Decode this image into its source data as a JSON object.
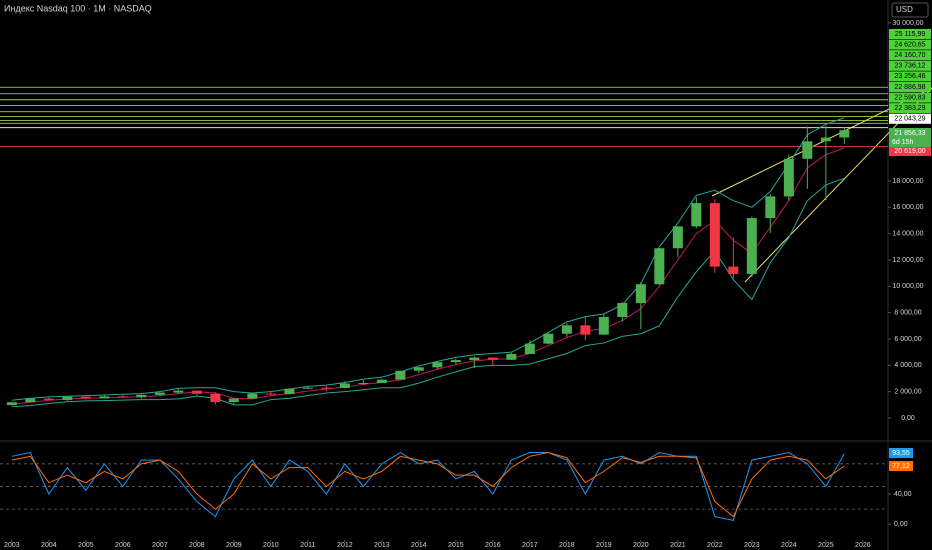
{
  "chart_data": {
    "type": "candlestick",
    "title": "Индекс Nasdaq 100 · 1M · NASDAQ",
    "currency": "USD",
    "x": [
      2003,
      2003.5,
      2004,
      2004.5,
      2005,
      2005.5,
      2006,
      2006.5,
      2007,
      2007.5,
      2008,
      2008.5,
      2009,
      2009.5,
      2010,
      2010.5,
      2011,
      2011.5,
      2012,
      2012.5,
      2013,
      2013.5,
      2014,
      2014.5,
      2015,
      2015.5,
      2016,
      2016.5,
      2017,
      2017.5,
      2018,
      2018.5,
      2019,
      2019.5,
      2020,
      2020.5,
      2021,
      2021.5,
      2022,
      2022.5,
      2023,
      2023.5,
      2024,
      2024.5,
      2025,
      2025.5
    ],
    "open": [
      980,
      1200,
      1470,
      1370,
      1620,
      1490,
      1640,
      1580,
      1760,
      1930,
      2080,
      1840,
      1210,
      1480,
      1860,
      1820,
      2220,
      2300,
      2280,
      2620,
      2660,
      2910,
      3590,
      3850,
      4240,
      4400,
      4590,
      4420,
      4860,
      5650,
      6400,
      7040,
      6330,
      7670,
      8730,
      10160,
      12890,
      14550,
      16320,
      11500,
      10940,
      15180,
      16830,
      19680,
      21010,
      21300
    ],
    "high": [
      1200,
      1470,
      1550,
      1630,
      1640,
      1700,
      1750,
      1790,
      1940,
      2240,
      2080,
      1960,
      1480,
      1880,
      2040,
      2250,
      2400,
      2440,
      2790,
      2880,
      2980,
      3600,
      3860,
      4300,
      4530,
      4700,
      4620,
      4950,
      5900,
      6450,
      7200,
      7700,
      7900,
      8800,
      10300,
      12900,
      14600,
      16760,
      16600,
      13700,
      15300,
      17000,
      20000,
      22130,
      22200,
      22050
    ],
    "low": [
      950,
      1180,
      1340,
      1300,
      1400,
      1480,
      1530,
      1450,
      1720,
      1850,
      1690,
      1020,
      1040,
      1460,
      1720,
      1780,
      2200,
      2030,
      2280,
      2500,
      2650,
      2900,
      3400,
      3700,
      4100,
      3790,
      3950,
      4400,
      4860,
      5600,
      6160,
      5900,
      6310,
      7330,
      6770,
      10100,
      12200,
      14400,
      11040,
      10440,
      10700,
      14060,
      16500,
      17400,
      16540,
      20800
    ],
    "close": [
      1200,
      1470,
      1370,
      1620,
      1490,
      1640,
      1580,
      1760,
      1930,
      2080,
      1840,
      1210,
      1480,
      1860,
      1820,
      2220,
      2300,
      2280,
      2620,
      2660,
      2910,
      3590,
      3850,
      4240,
      4400,
      4590,
      4420,
      4860,
      5650,
      6400,
      7040,
      6330,
      7670,
      8730,
      10160,
      12890,
      14550,
      16320,
      11500,
      10940,
      15180,
      16830,
      19680,
      21010,
      21300,
      21856.33
    ],
    "up_color": "#4caf50",
    "down_color": "#f23645",
    "bands": {
      "upper": [
        1350,
        1500,
        1600,
        1650,
        1700,
        1750,
        1800,
        1850,
        2000,
        2250,
        2300,
        2300,
        2000,
        1900,
        2000,
        2200,
        2400,
        2500,
        2700,
        2950,
        3100,
        3500,
        3950,
        4300,
        4600,
        4800,
        4900,
        5000,
        5700,
        6500,
        7300,
        7700,
        7900,
        8600,
        10200,
        13000,
        14800,
        16900,
        17300,
        16500,
        16000,
        17200,
        19300,
        21500,
        22300,
        22800
      ],
      "middle": [
        1050,
        1200,
        1350,
        1440,
        1500,
        1530,
        1580,
        1620,
        1700,
        1850,
        1980,
        1900,
        1500,
        1450,
        1700,
        1850,
        2050,
        2200,
        2350,
        2550,
        2700,
        2900,
        3300,
        3700,
        4050,
        4350,
        4450,
        4500,
        4900,
        5500,
        6100,
        6600,
        6800,
        7400,
        8300,
        10000,
        12000,
        14000,
        15000,
        13500,
        12500,
        14500,
        16500,
        19000,
        20000,
        20500
      ],
      "lower": [
        850,
        950,
        1100,
        1230,
        1300,
        1320,
        1360,
        1400,
        1400,
        1450,
        1660,
        1500,
        1000,
        1000,
        1400,
        1500,
        1700,
        1900,
        2000,
        2150,
        2300,
        2300,
        2650,
        3100,
        3500,
        3900,
        4000,
        4000,
        4100,
        4500,
        4900,
        5500,
        5700,
        6200,
        6400,
        7000,
        9200,
        11100,
        12700,
        10500,
        9000,
        11800,
        13700,
        16500,
        17700,
        18200
      ],
      "band_color": "#26a69a",
      "middle_color": "#c2185b"
    },
    "xlim": [
      2002.68,
      2026.68
    ],
    "xticks": [
      2003,
      2004,
      2005,
      2006,
      2007,
      2008,
      2009,
      2010,
      2011,
      2012,
      2013,
      2014,
      2015,
      2016,
      2017,
      2018,
      2019,
      2020,
      2021,
      2022,
      2023,
      2024,
      2025,
      2026
    ],
    "ylim": [
      -1670,
      31740
    ],
    "yticks": [
      {
        "value": 0,
        "label": "0,00"
      },
      {
        "value": 2000,
        "label": "2 000,00"
      },
      {
        "value": 4000,
        "label": "4 000,00"
      },
      {
        "value": 6000,
        "label": "6 000,00"
      },
      {
        "value": 8000,
        "label": "8 000,00"
      },
      {
        "value": 10000,
        "label": "10 000,00"
      },
      {
        "value": 12000,
        "label": "12 000,00"
      },
      {
        "value": 14000,
        "label": "14 000,00"
      },
      {
        "value": 16000,
        "label": "16 000,00"
      },
      {
        "value": 18000,
        "label": "18 000,00"
      },
      {
        "value": 30000,
        "label": "30 000,00"
      }
    ],
    "levels": [
      {
        "value": 25115.99,
        "label": "25 115,99",
        "color": "#b9f24a"
      },
      {
        "value": 24620.65,
        "label": "24 620,65",
        "color": "#b9f24a"
      },
      {
        "value": 24160.7,
        "label": "24 160,70",
        "color": "#b9f24a"
      },
      {
        "value": 23736.12,
        "label": "23 736,12",
        "color": "#b9f24a"
      },
      {
        "value": 23256.46,
        "label": "23 256,46",
        "color": "#b9f24a"
      },
      {
        "value": 22886.98,
        "label": "22 886,98",
        "color": "#b9f24a"
      },
      {
        "value": 22590.83,
        "label": "22 590,83",
        "color": "#b9f24a"
      },
      {
        "value": 22383.29,
        "label": "22 383,29",
        "color": "#b9f24a"
      },
      {
        "value": 22043.29,
        "label": "22 043,29",
        "color": "#ffffff"
      },
      {
        "value": 20619.0,
        "label": "20 619,00",
        "color": "#f23645"
      }
    ],
    "current_price": {
      "value": 21856.33,
      "label": "21 856,33",
      "countdown": "6d 15h",
      "color": "#4caf50"
    },
    "stochastic": {
      "ylim": [
        -21,
        105
      ],
      "yticks": [
        {
          "value": 0,
          "label": "0,00"
        },
        {
          "value": 40,
          "label": "40,00"
        }
      ],
      "levels": [
        20,
        50,
        80
      ],
      "series": [
        {
          "color": "#2196f3",
          "values": [
            90,
            95,
            40,
            75,
            45,
            80,
            50,
            85,
            85,
            60,
            30,
            10,
            60,
            85,
            50,
            85,
            70,
            40,
            80,
            50,
            80,
            95,
            80,
            85,
            60,
            70,
            40,
            85,
            95,
            95,
            85,
            40,
            85,
            90,
            80,
            95,
            90,
            90,
            10,
            5,
            85,
            90,
            95,
            80,
            50,
            93.55
          ],
          "last_label": "93,55"
        },
        {
          "color": "#ff6d00",
          "values": [
            85,
            90,
            55,
            65,
            55,
            70,
            60,
            80,
            85,
            70,
            40,
            20,
            40,
            80,
            60,
            75,
            75,
            50,
            70,
            60,
            70,
            90,
            85,
            80,
            65,
            65,
            50,
            75,
            90,
            95,
            88,
            55,
            70,
            88,
            82,
            90,
            90,
            88,
            30,
            10,
            60,
            85,
            90,
            85,
            60,
            77.12
          ],
          "last_label": "77,12"
        }
      ]
    }
  }
}
